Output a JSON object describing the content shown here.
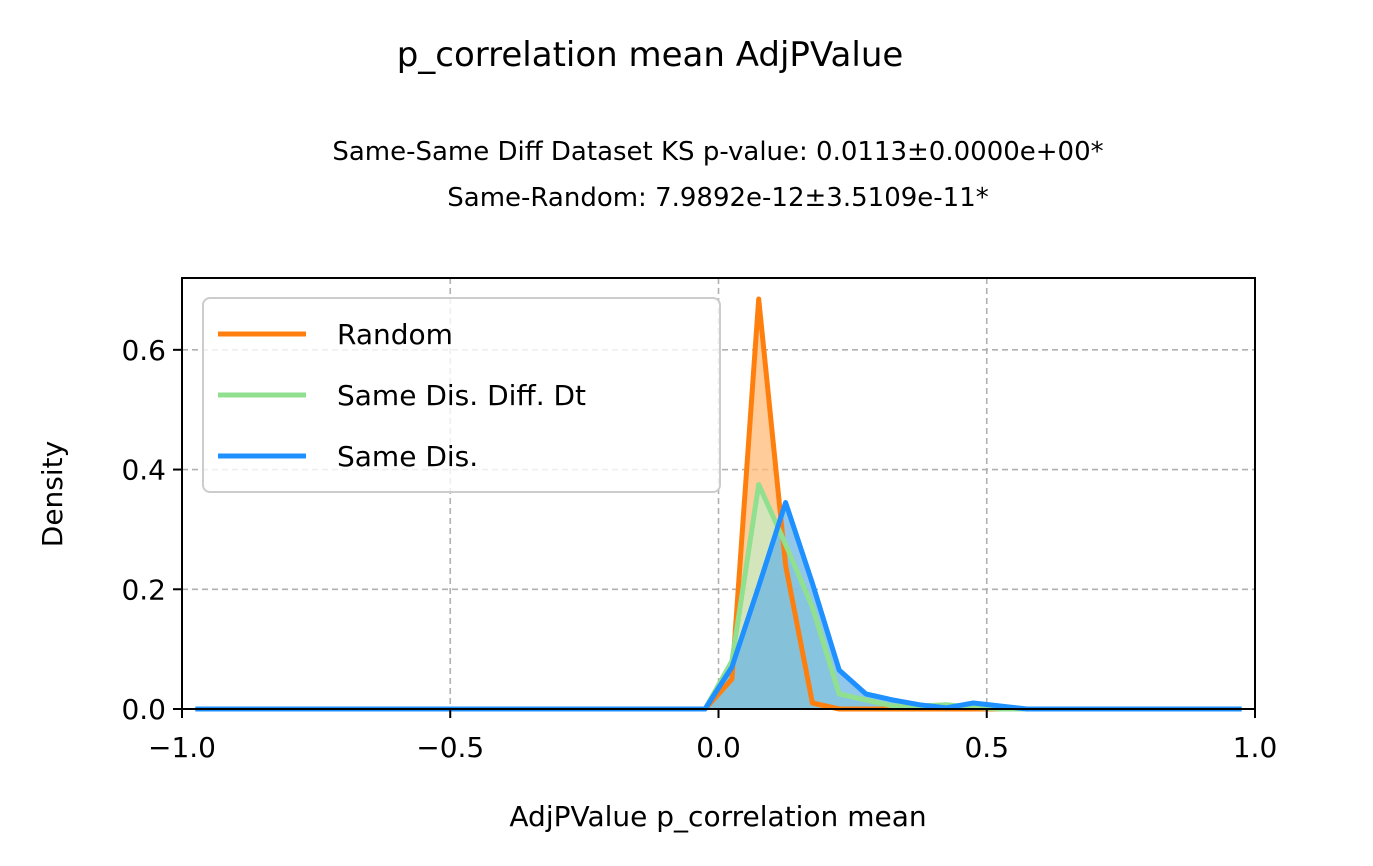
{
  "chart_data": {
    "type": "line",
    "title": "p_correlation mean AdjPValue",
    "subtitle_lines": [
      "Same-Same Diff Dataset  KS p-value: 0.0113±0.0000e+00*",
      "Same-Random: 7.9892e-12±3.5109e-11*"
    ],
    "xlabel": "AdjPValue p_correlation mean",
    "ylabel": "Density",
    "xlim": [
      -1.0,
      1.0
    ],
    "ylim": [
      0.0,
      0.72
    ],
    "xticks": [
      -1.0,
      -0.5,
      0.0,
      0.5,
      1.0
    ],
    "xtick_labels": [
      "−1.0",
      "−0.5",
      "0.0",
      "0.5",
      "1.0"
    ],
    "yticks": [
      0.0,
      0.2,
      0.4,
      0.6
    ],
    "ytick_labels": [
      "0.0",
      "0.2",
      "0.4",
      "0.6"
    ],
    "grid": true,
    "legend_position": "upper-left",
    "filled_area": true,
    "series": [
      {
        "name": "Random",
        "color": "#ff7f0e",
        "fill": "#ffbb78",
        "x": [
          -0.975,
          -0.925,
          -0.875,
          -0.825,
          -0.775,
          -0.725,
          -0.675,
          -0.625,
          -0.575,
          -0.525,
          -0.475,
          -0.425,
          -0.375,
          -0.325,
          -0.275,
          -0.225,
          -0.175,
          -0.125,
          -0.075,
          -0.025,
          0.025,
          0.075,
          0.125,
          0.175,
          0.225,
          0.275,
          0.325,
          0.375,
          0.425,
          0.475,
          0.525,
          0.575,
          0.625,
          0.675,
          0.725,
          0.775,
          0.825,
          0.875,
          0.925,
          0.975
        ],
        "y": [
          0,
          0,
          0,
          0,
          0,
          0,
          0,
          0,
          0,
          0,
          0,
          0,
          0,
          0,
          0,
          0,
          0,
          0,
          0,
          0,
          0.05,
          0.685,
          0.24,
          0.01,
          0,
          0,
          0,
          0,
          0,
          0,
          0,
          0,
          0,
          0,
          0,
          0,
          0,
          0,
          0,
          0
        ]
      },
      {
        "name": "Same Dis. Diff. Dt",
        "color": "#90e090",
        "fill": "#c6eec6",
        "x": [
          -0.975,
          -0.925,
          -0.875,
          -0.825,
          -0.775,
          -0.725,
          -0.675,
          -0.625,
          -0.575,
          -0.525,
          -0.475,
          -0.425,
          -0.375,
          -0.325,
          -0.275,
          -0.225,
          -0.175,
          -0.125,
          -0.075,
          -0.025,
          0.025,
          0.075,
          0.125,
          0.175,
          0.225,
          0.275,
          0.325,
          0.375,
          0.425,
          0.475,
          0.525,
          0.575,
          0.625,
          0.675,
          0.725,
          0.775,
          0.825,
          0.875,
          0.925,
          0.975
        ],
        "y": [
          0,
          0,
          0,
          0,
          0,
          0,
          0,
          0,
          0,
          0,
          0,
          0,
          0,
          0,
          0,
          0,
          0,
          0,
          0,
          0,
          0.08,
          0.375,
          0.275,
          0.17,
          0.025,
          0.015,
          0.005,
          0.005,
          0.007,
          0.003,
          0,
          0,
          0,
          0,
          0,
          0,
          0,
          0,
          0,
          0
        ]
      },
      {
        "name": "Same Dis.",
        "color": "#1e90ff",
        "fill": "#6cb4e4",
        "x": [
          -0.975,
          -0.925,
          -0.875,
          -0.825,
          -0.775,
          -0.725,
          -0.675,
          -0.625,
          -0.575,
          -0.525,
          -0.475,
          -0.425,
          -0.375,
          -0.325,
          -0.275,
          -0.225,
          -0.175,
          -0.125,
          -0.075,
          -0.025,
          0.025,
          0.075,
          0.125,
          0.175,
          0.225,
          0.275,
          0.325,
          0.375,
          0.425,
          0.475,
          0.525,
          0.575,
          0.625,
          0.675,
          0.725,
          0.775,
          0.825,
          0.875,
          0.925,
          0.975
        ],
        "y": [
          0,
          0,
          0,
          0,
          0,
          0,
          0,
          0,
          0,
          0,
          0,
          0,
          0,
          0,
          0,
          0,
          0,
          0,
          0,
          0,
          0.07,
          0.205,
          0.345,
          0.21,
          0.065,
          0.025,
          0.015,
          0.007,
          0.002,
          0.01,
          0.005,
          0,
          0,
          0,
          0,
          0,
          0,
          0,
          0,
          0
        ]
      }
    ]
  }
}
